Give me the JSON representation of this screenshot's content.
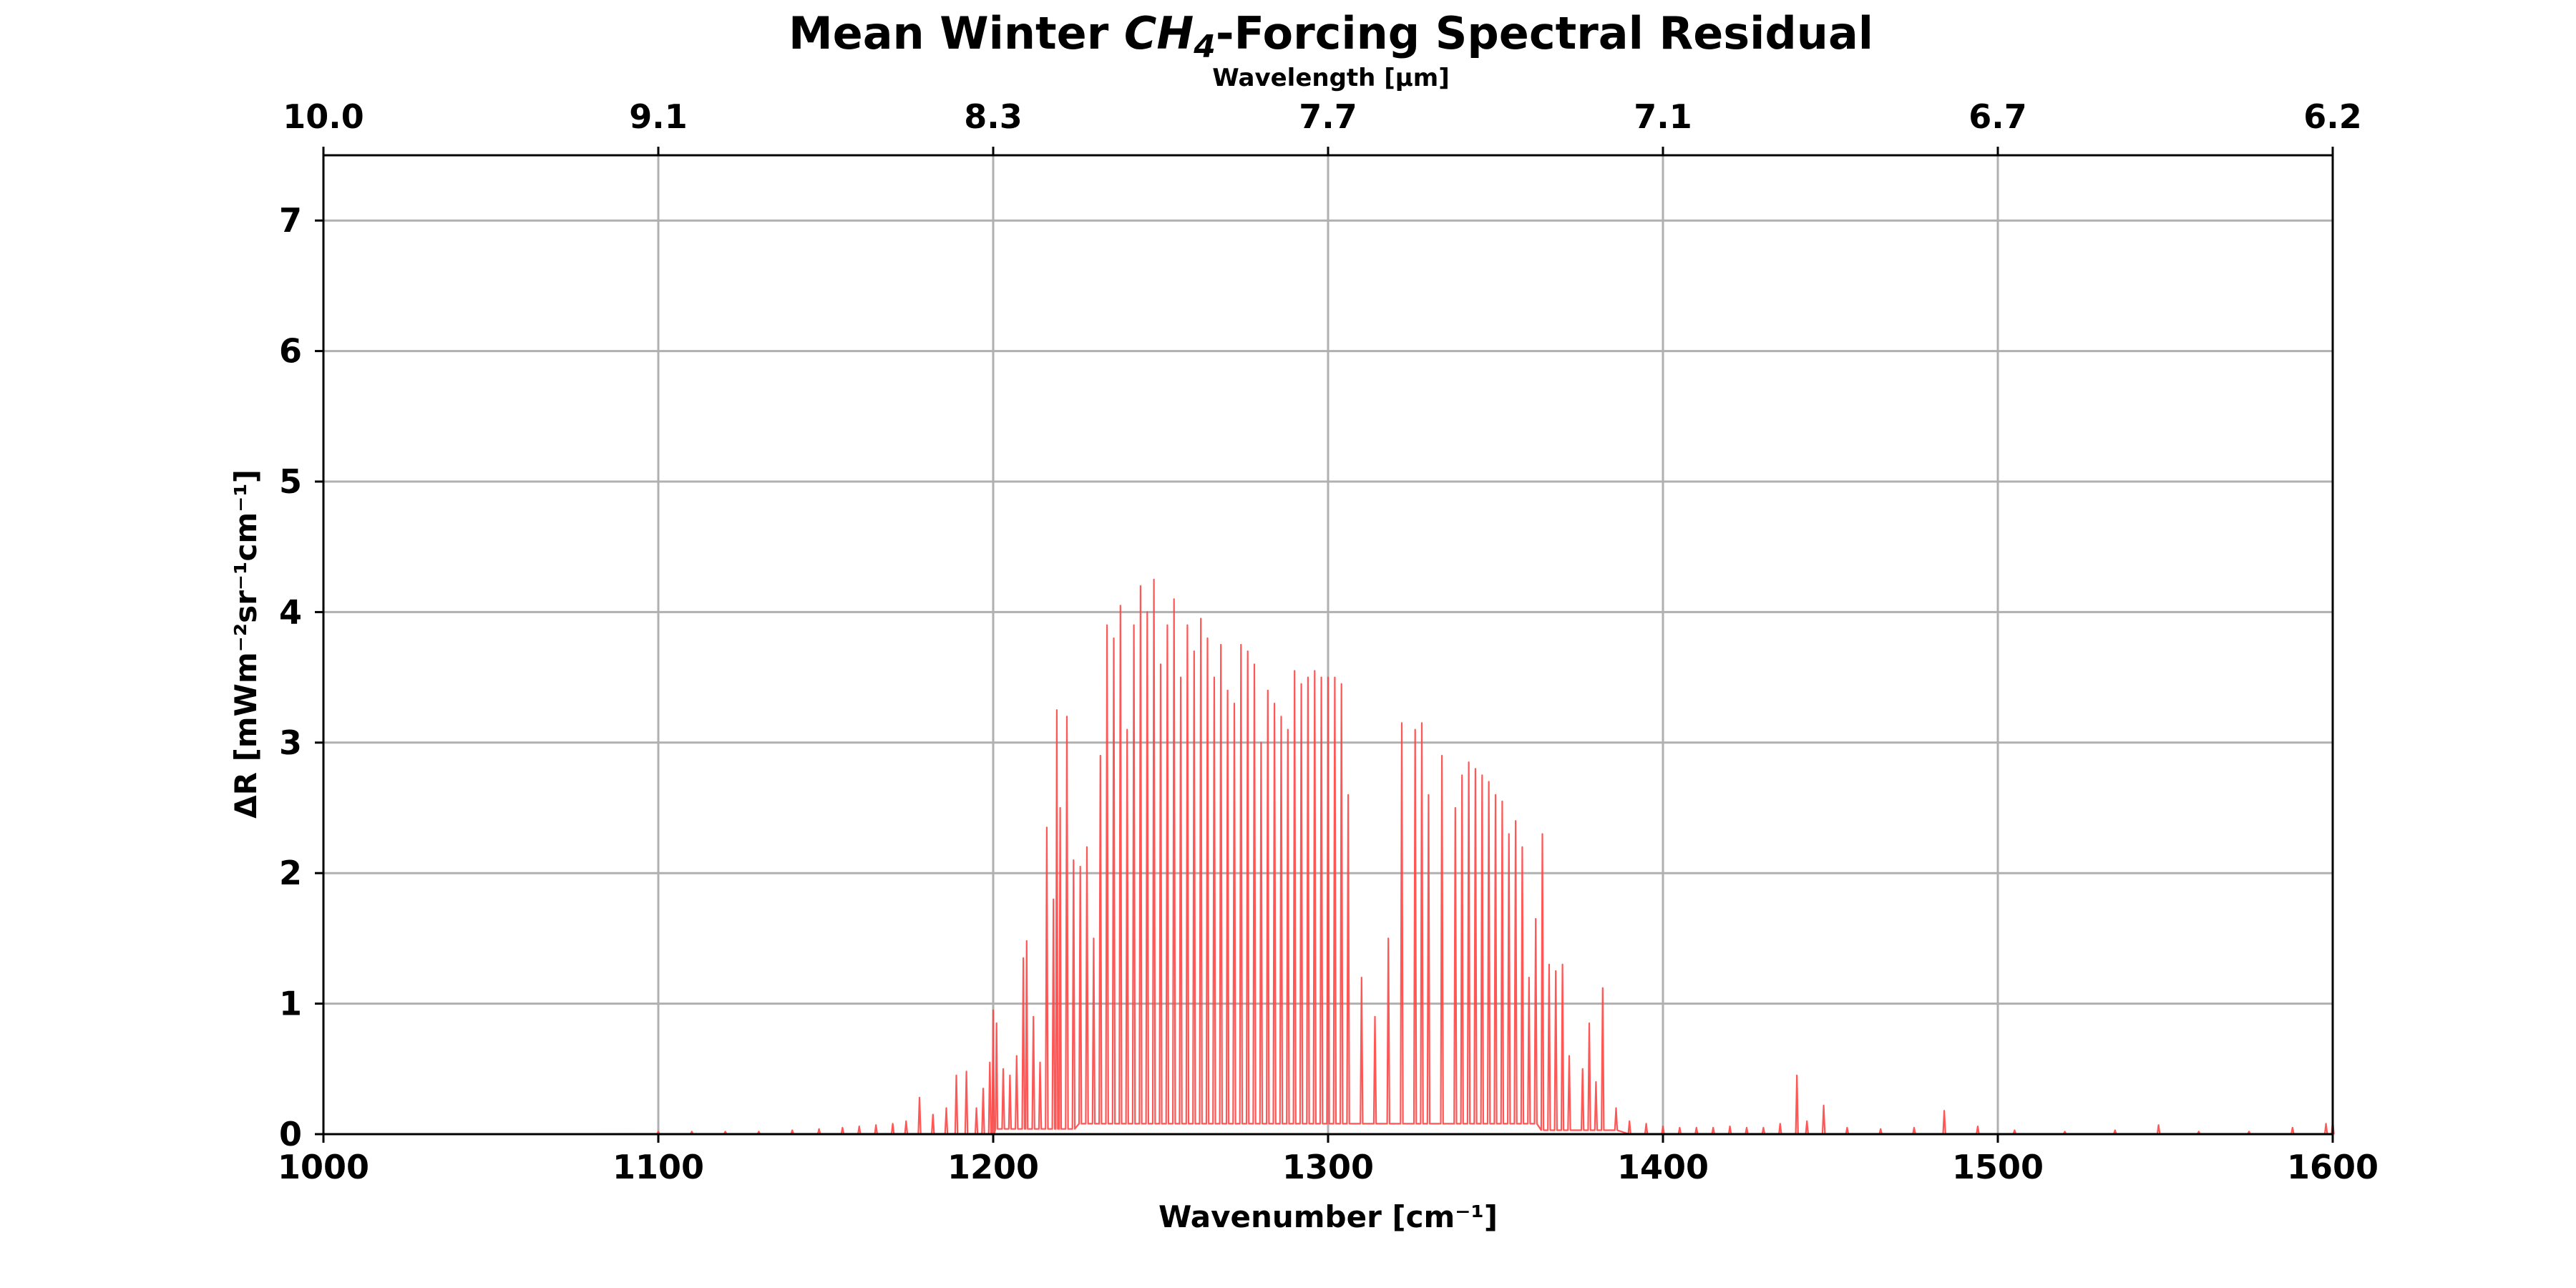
{
  "chart_data": {
    "type": "line",
    "title": "Mean Winter CH4-Forcing Spectral Residual",
    "title_parts": {
      "prefix": "Mean Winter ",
      "species": "CH",
      "subscript": "4",
      "suffix": "-Forcing Spectral Residual"
    },
    "xlabel": "Wavenumber [cm⁻¹]",
    "ylabel": "ΔR [mWm⁻²sr⁻¹cm⁻¹]",
    "top_xlabel": "Wavelength [μm]",
    "xlim": [
      1000,
      1600
    ],
    "ylim": [
      0,
      7.5
    ],
    "x_ticks": [
      1000,
      1100,
      1200,
      1300,
      1400,
      1500,
      1600
    ],
    "x_tick_labels": [
      "1000",
      "1100",
      "1200",
      "1300",
      "1400",
      "1500",
      "1600"
    ],
    "y_ticks": [
      0,
      1,
      2,
      3,
      4,
      5,
      6,
      7
    ],
    "y_tick_labels": [
      "0",
      "1",
      "2",
      "3",
      "4",
      "5",
      "6",
      "7"
    ],
    "top_ticks": [
      1000,
      1100,
      1200,
      1300,
      1400,
      1500,
      1600
    ],
    "top_tick_labels": [
      "10.0",
      "9.1",
      "8.3",
      "7.7",
      "7.1",
      "6.7",
      "6.2"
    ],
    "grid": true,
    "series": [
      {
        "color": "#ff4444",
        "peaks": [
          [
            1100,
            0.02
          ],
          [
            1110,
            0.02
          ],
          [
            1120,
            0.02
          ],
          [
            1130,
            0.02
          ],
          [
            1140,
            0.03
          ],
          [
            1148,
            0.04
          ],
          [
            1155,
            0.05
          ],
          [
            1160,
            0.06
          ],
          [
            1165,
            0.07
          ],
          [
            1170,
            0.08
          ],
          [
            1174,
            0.1
          ],
          [
            1178,
            0.28
          ],
          [
            1182,
            0.15
          ],
          [
            1186,
            0.2
          ],
          [
            1189,
            0.45
          ],
          [
            1192,
            0.48
          ],
          [
            1195,
            0.2
          ],
          [
            1197,
            0.35
          ],
          [
            1199,
            0.55
          ],
          [
            1200,
            0.95
          ],
          [
            1201,
            0.85
          ],
          [
            1203,
            0.5
          ],
          [
            1205,
            0.45
          ],
          [
            1207,
            0.6
          ],
          [
            1209,
            1.35
          ],
          [
            1210,
            1.48
          ],
          [
            1212,
            0.9
          ],
          [
            1214,
            0.55
          ],
          [
            1216,
            2.35
          ],
          [
            1218,
            1.8
          ],
          [
            1219,
            3.25
          ],
          [
            1220,
            2.5
          ],
          [
            1222,
            3.2
          ],
          [
            1224,
            2.1
          ],
          [
            1226,
            2.05
          ],
          [
            1228,
            2.2
          ],
          [
            1230,
            1.5
          ],
          [
            1232,
            2.9
          ],
          [
            1234,
            3.9
          ],
          [
            1236,
            3.8
          ],
          [
            1238,
            4.05
          ],
          [
            1240,
            3.1
          ],
          [
            1242,
            3.9
          ],
          [
            1244,
            4.2
          ],
          [
            1246,
            4.0
          ],
          [
            1248,
            4.25
          ],
          [
            1250,
            3.6
          ],
          [
            1252,
            3.9
          ],
          [
            1254,
            4.1
          ],
          [
            1256,
            3.5
          ],
          [
            1258,
            3.9
          ],
          [
            1260,
            3.7
          ],
          [
            1262,
            3.95
          ],
          [
            1264,
            3.8
          ],
          [
            1266,
            3.5
          ],
          [
            1268,
            3.75
          ],
          [
            1270,
            3.4
          ],
          [
            1272,
            3.3
          ],
          [
            1274,
            3.75
          ],
          [
            1276,
            3.7
          ],
          [
            1278,
            3.6
          ],
          [
            1280,
            3.0
          ],
          [
            1282,
            3.4
          ],
          [
            1284,
            3.3
          ],
          [
            1286,
            3.2
          ],
          [
            1288,
            3.1
          ],
          [
            1290,
            3.55
          ],
          [
            1292,
            3.45
          ],
          [
            1294,
            3.5
          ],
          [
            1296,
            3.55
          ],
          [
            1298,
            3.5
          ],
          [
            1300,
            3.5
          ],
          [
            1302,
            3.5
          ],
          [
            1304,
            3.45
          ],
          [
            1306,
            2.6
          ],
          [
            1310,
            1.2
          ],
          [
            1314,
            0.9
          ],
          [
            1318,
            1.5
          ],
          [
            1322,
            3.15
          ],
          [
            1326,
            3.1
          ],
          [
            1328,
            3.15
          ],
          [
            1330,
            2.6
          ],
          [
            1334,
            2.9
          ],
          [
            1338,
            2.5
          ],
          [
            1340,
            2.75
          ],
          [
            1342,
            2.85
          ],
          [
            1344,
            2.8
          ],
          [
            1346,
            2.75
          ],
          [
            1348,
            2.7
          ],
          [
            1350,
            2.6
          ],
          [
            1352,
            2.55
          ],
          [
            1354,
            2.3
          ],
          [
            1356,
            2.4
          ],
          [
            1358,
            2.2
          ],
          [
            1360,
            1.2
          ],
          [
            1362,
            1.65
          ],
          [
            1364,
            2.3
          ],
          [
            1366,
            1.3
          ],
          [
            1368,
            1.25
          ],
          [
            1370,
            1.3
          ],
          [
            1372,
            0.6
          ],
          [
            1376,
            0.5
          ],
          [
            1378,
            0.85
          ],
          [
            1380,
            0.4
          ],
          [
            1382,
            1.12
          ],
          [
            1386,
            0.2
          ],
          [
            1390,
            0.1
          ],
          [
            1395,
            0.08
          ],
          [
            1400,
            0.06
          ],
          [
            1405,
            0.05
          ],
          [
            1410,
            0.05
          ],
          [
            1415,
            0.05
          ],
          [
            1420,
            0.06
          ],
          [
            1425,
            0.05
          ],
          [
            1430,
            0.05
          ],
          [
            1435,
            0.08
          ],
          [
            1440,
            0.45
          ],
          [
            1443,
            0.1
          ],
          [
            1448,
            0.22
          ],
          [
            1455,
            0.05
          ],
          [
            1465,
            0.04
          ],
          [
            1475,
            0.05
          ],
          [
            1484,
            0.18
          ],
          [
            1494,
            0.06
          ],
          [
            1505,
            0.03
          ],
          [
            1520,
            0.02
          ],
          [
            1535,
            0.03
          ],
          [
            1548,
            0.07
          ],
          [
            1560,
            0.02
          ],
          [
            1575,
            0.02
          ],
          [
            1588,
            0.05
          ],
          [
            1598,
            0.08
          ],
          [
            1600,
            0.1
          ]
        ]
      }
    ]
  }
}
